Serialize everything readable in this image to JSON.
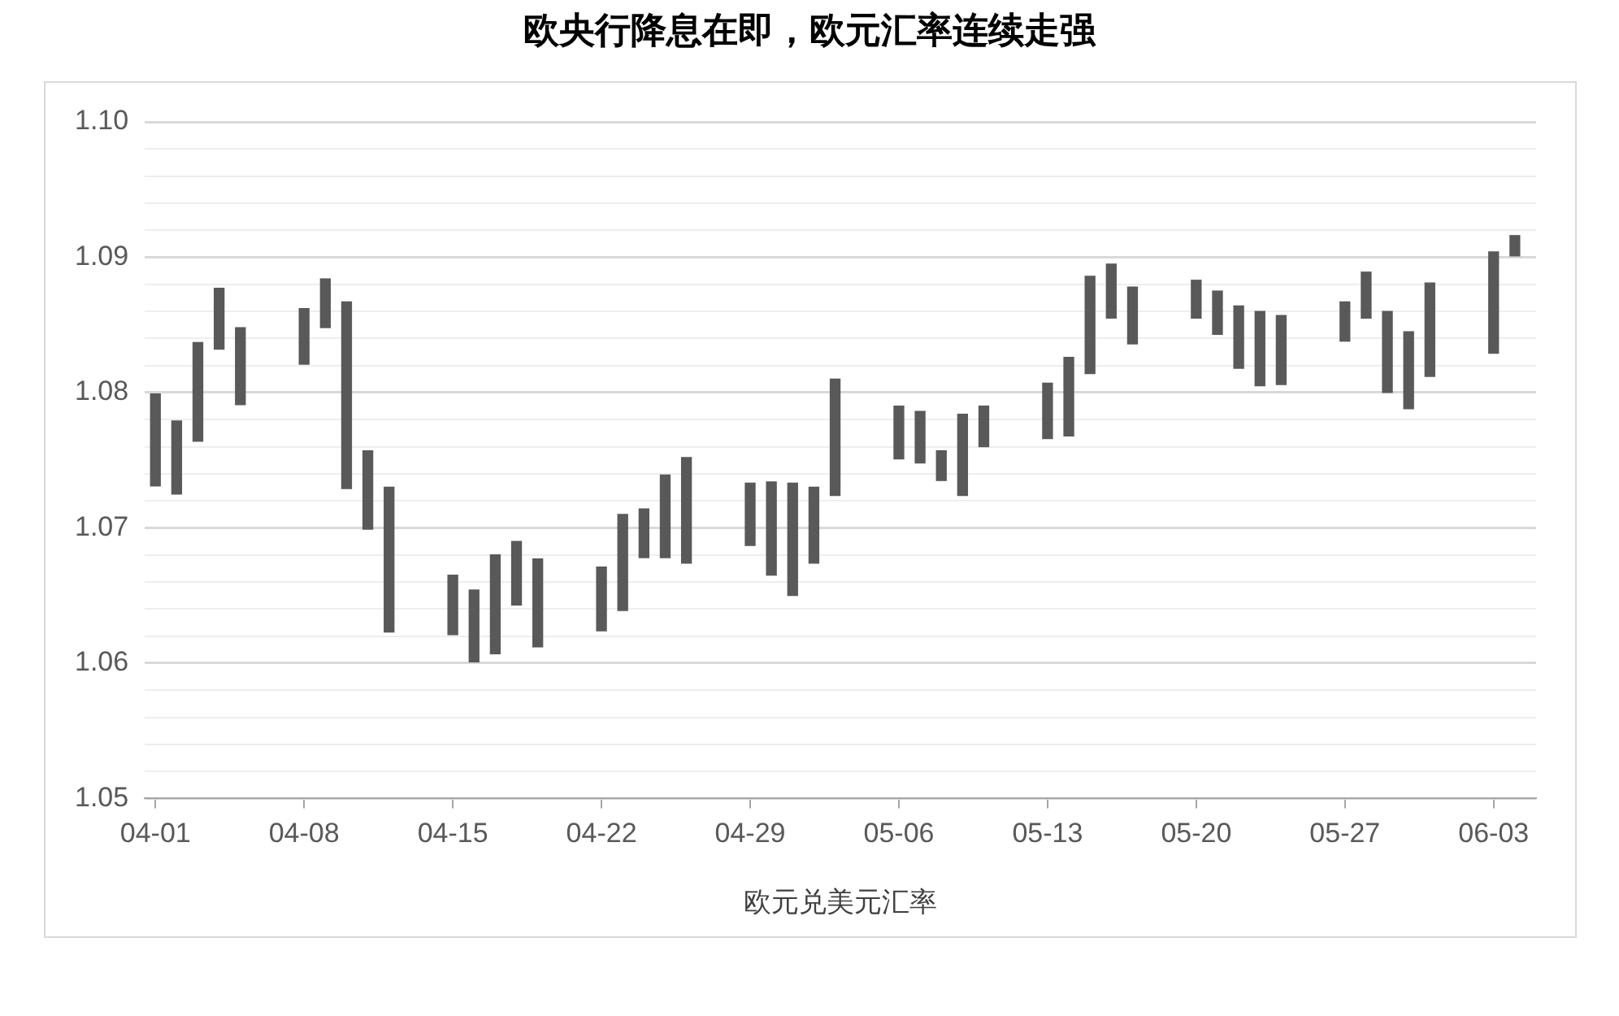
{
  "chart_data": {
    "type": "bar",
    "title": "欧央行降息在即，欧元汇率连续走强",
    "xlabel": "欧元兑美元汇率",
    "x": [
      "--04-01",
      "--04-02",
      "--04-03",
      "--04-04",
      "--04-05",
      "--04-08",
      "--04-09",
      "--04-10",
      "--04-11",
      "--04-12",
      "--04-15",
      "--04-16",
      "--04-17",
      "--04-18",
      "--04-19",
      "--04-22",
      "--04-23",
      "--04-24",
      "--04-25",
      "--04-26",
      "--04-29",
      "--04-30",
      "--05-01",
      "--05-02",
      "--05-03",
      "--05-06",
      "--05-07",
      "--05-08",
      "--05-09",
      "--05-10",
      "--05-13",
      "--05-14",
      "--05-15",
      "--05-16",
      "--05-17",
      "--05-20",
      "--05-21",
      "--05-22",
      "--05-23",
      "--05-24",
      "--05-27",
      "--05-28",
      "--05-29",
      "--05-30",
      "--05-31",
      "--06-03",
      "--06-04"
    ],
    "base": [
      1.0731,
      1.0725,
      1.0764,
      1.0832,
      1.0791,
      1.0821,
      1.0848,
      1.0729,
      1.0699,
      1.0623,
      1.0621,
      1.0601,
      1.0607,
      1.0643,
      1.0612,
      1.0624,
      1.0639,
      1.0678,
      1.0678,
      1.0674,
      1.0687,
      1.0665,
      1.065,
      1.0674,
      1.0724,
      1.0751,
      1.0748,
      1.0735,
      1.0724,
      1.076,
      1.0766,
      1.0768,
      1.0814,
      1.0855,
      1.0836,
      1.0855,
      1.0843,
      1.0818,
      1.0805,
      1.0806,
      1.0838,
      1.0855,
      1.08,
      1.0788,
      1.0812,
      1.0829,
      1.0901
    ],
    "values": [
      0.0068,
      0.0054,
      0.0073,
      0.0045,
      0.0057,
      0.0041,
      0.0036,
      0.0138,
      0.0058,
      0.0107,
      0.0044,
      0.0053,
      0.0073,
      0.0047,
      0.0065,
      0.0047,
      0.0071,
      0.0036,
      0.0061,
      0.0078,
      0.0046,
      0.0069,
      0.0083,
      0.0056,
      0.0086,
      0.0039,
      0.0038,
      0.0022,
      0.006,
      0.003,
      0.0041,
      0.0058,
      0.0072,
      0.004,
      0.0042,
      0.0028,
      0.0032,
      0.0046,
      0.0055,
      0.0051,
      0.0029,
      0.0034,
      0.006,
      0.0057,
      0.0069,
      0.0075,
      0.0015
    ],
    "color": "#595959",
    "xlim": [
      "--03-31T12:00",
      "--06-05"
    ],
    "xticks": [
      {
        "value": "--04-01",
        "label": "04-01"
      },
      {
        "value": "--04-08",
        "label": "04-08"
      },
      {
        "value": "--04-15",
        "label": "04-15"
      },
      {
        "value": "--04-22",
        "label": "04-22"
      },
      {
        "value": "--04-29",
        "label": "04-29"
      },
      {
        "value": "--05-06",
        "label": "05-06"
      },
      {
        "value": "--05-13",
        "label": "05-13"
      },
      {
        "value": "--05-20",
        "label": "05-20"
      },
      {
        "value": "--05-27",
        "label": "05-27"
      },
      {
        "value": "--06-03",
        "label": "06-03"
      }
    ],
    "ylim": [
      1.05,
      1.1
    ],
    "yticks": [
      {
        "value": 1.05,
        "label": "1.05"
      },
      {
        "value": 1.052,
        "label": null
      },
      {
        "value": 1.054,
        "label": null
      },
      {
        "value": 1.056,
        "label": null
      },
      {
        "value": 1.058,
        "label": null
      },
      {
        "value": 1.06,
        "label": "1.06"
      },
      {
        "value": 1.062,
        "label": null
      },
      {
        "value": 1.064,
        "label": null
      },
      {
        "value": 1.066,
        "label": null
      },
      {
        "value": 1.068,
        "label": null
      },
      {
        "value": 1.07,
        "label": "1.07"
      },
      {
        "value": 1.072,
        "label": null
      },
      {
        "value": 1.074,
        "label": null
      },
      {
        "value": 1.076,
        "label": null
      },
      {
        "value": 1.078,
        "label": null
      },
      {
        "value": 1.08,
        "label": "1.08"
      },
      {
        "value": 1.082,
        "label": null
      },
      {
        "value": 1.084,
        "label": null
      },
      {
        "value": 1.086,
        "label": null
      },
      {
        "value": 1.088,
        "label": null
      },
      {
        "value": 1.09,
        "label": "1.09"
      },
      {
        "value": 1.092,
        "label": null
      },
      {
        "value": 1.094,
        "label": null
      },
      {
        "value": 1.096,
        "label": null
      },
      {
        "value": 1.098,
        "label": null
      },
      {
        "value": 1.1,
        "label": "1.10"
      }
    ],
    "grid": "y",
    "legend": false
  }
}
